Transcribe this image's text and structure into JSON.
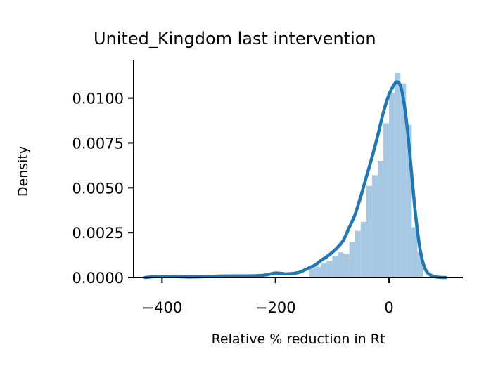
{
  "chart_data": {
    "type": "histogram+kde",
    "title": "United_Kingdom last intervention",
    "xlabel": "Relative % reduction in Rt",
    "ylabel": "Density",
    "xlim": [
      -450,
      130
    ],
    "ylim": [
      0,
      0.0121
    ],
    "x_ticks": [
      -400,
      -200,
      0
    ],
    "x_tick_labels": [
      "−400",
      "−200",
      "0"
    ],
    "y_ticks": [
      0,
      0.0025,
      0.005,
      0.0075,
      0.01
    ],
    "y_tick_labels": [
      "0.0000",
      "0.0025",
      "0.0050",
      "0.0075",
      "0.0100"
    ],
    "grid": false,
    "colors": {
      "histogram": "#a6c8e2",
      "kde": "#1f77b4",
      "axes": "#000000"
    },
    "histogram": {
      "bin_width": 10,
      "bins": [
        {
          "x": -140,
          "density": 0.0005
        },
        {
          "x": -130,
          "density": 0.0006
        },
        {
          "x": -120,
          "density": 0.0008
        },
        {
          "x": -110,
          "density": 0.0009
        },
        {
          "x": -100,
          "density": 0.0012
        },
        {
          "x": -90,
          "density": 0.0014
        },
        {
          "x": -80,
          "density": 0.0013
        },
        {
          "x": -70,
          "density": 0.002
        },
        {
          "x": -60,
          "density": 0.0026
        },
        {
          "x": -50,
          "density": 0.0031
        },
        {
          "x": -40,
          "density": 0.0051
        },
        {
          "x": -30,
          "density": 0.0057
        },
        {
          "x": -20,
          "density": 0.0065
        },
        {
          "x": -10,
          "density": 0.0086
        },
        {
          "x": 0,
          "density": 0.0103
        },
        {
          "x": 10,
          "density": 0.0114
        },
        {
          "x": 20,
          "density": 0.0108
        },
        {
          "x": 30,
          "density": 0.0085
        },
        {
          "x": 40,
          "density": 0.0028
        },
        {
          "x": 50,
          "density": 0.0014
        }
      ]
    },
    "kde": {
      "x": [
        -430,
        -400,
        -350,
        -300,
        -250,
        -220,
        -200,
        -180,
        -160,
        -150,
        -140,
        -130,
        -120,
        -110,
        -100,
        -90,
        -80,
        -70,
        -60,
        -50,
        -40,
        -30,
        -20,
        -10,
        0,
        10,
        15,
        20,
        25,
        30,
        35,
        40,
        45,
        50,
        55,
        60,
        65,
        70,
        80,
        90,
        100
      ],
      "y": [
        0.0,
        7e-05,
        3e-05,
        8e-05,
        9e-05,
        0.00013,
        0.00025,
        0.0002,
        0.00027,
        0.0004,
        0.00055,
        0.0007,
        0.00095,
        0.00115,
        0.0014,
        0.0017,
        0.0021,
        0.0028,
        0.0035,
        0.0045,
        0.0056,
        0.0067,
        0.0079,
        0.0092,
        0.0102,
        0.0108,
        0.0109,
        0.0107,
        0.01,
        0.0089,
        0.0074,
        0.0057,
        0.004,
        0.0026,
        0.0015,
        0.0008,
        0.0004,
        0.0002,
        5e-05,
        1e-05,
        0.0
      ]
    }
  }
}
